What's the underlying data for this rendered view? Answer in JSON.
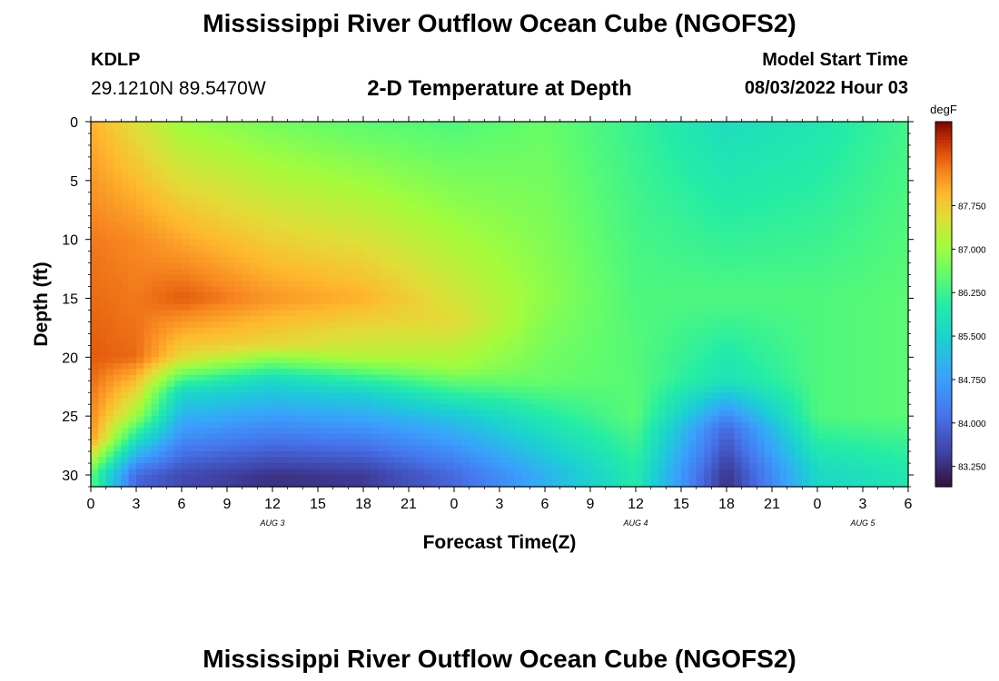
{
  "header": {
    "title": "Mississippi River Outflow Ocean Cube (NGOFS2)",
    "station_id": "KDLP",
    "station_coords": "29.1210N  89.5470W",
    "product_title": "2-D Temperature at Depth",
    "run_label": "Model Start Time",
    "run_value": "08/03/2022 Hour 03"
  },
  "footer": {
    "title": "Mississippi River Outflow Ocean Cube (NGOFS2)"
  },
  "chart_data": {
    "type": "heatmap",
    "title": "2-D Temperature at Depth",
    "xlabel": "Forecast Time(Z)",
    "ylabel": "Depth (ft)",
    "x_ticks": [
      "0",
      "3",
      "6",
      "9",
      "12",
      "15",
      "18",
      "21",
      "0",
      "3",
      "6",
      "9",
      "12",
      "15",
      "18",
      "21",
      "0",
      "3",
      "6"
    ],
    "x_range_hours": [
      0,
      54
    ],
    "date_labels": [
      {
        "label": "AUG 3",
        "hour": 12
      },
      {
        "label": "AUG 4",
        "hour": 36
      },
      {
        "label": "AUG 5",
        "hour": 51
      }
    ],
    "y_ticks": [
      "0",
      "5",
      "10",
      "15",
      "20",
      "25",
      "30"
    ],
    "y_range_ft": [
      0,
      31
    ],
    "y_inverted": true,
    "colorbar": {
      "unit": "degF",
      "min": 82.9,
      "max": 89.2,
      "tick_values": [
        83.25,
        84.0,
        84.75,
        85.5,
        86.25,
        87.0,
        87.75
      ],
      "tick_labels": [
        "83.250",
        "84.000",
        "84.750",
        "85.500",
        "86.250",
        "87.000",
        "87.750"
      ]
    },
    "field_description": "Temperature field by forecast hour (x) and depth (y)",
    "temperature_samples": [
      {
        "hour": 0,
        "profile": [
          {
            "depth": 0,
            "temp": 88.0
          },
          {
            "depth": 10,
            "temp": 88.4
          },
          {
            "depth": 20,
            "temp": 88.6
          },
          {
            "depth": 27,
            "temp": 88.2
          },
          {
            "depth": 30,
            "temp": 86.5
          }
        ]
      },
      {
        "hour": 3,
        "profile": [
          {
            "depth": 0,
            "temp": 87.5
          },
          {
            "depth": 10,
            "temp": 88.3
          },
          {
            "depth": 20,
            "temp": 88.5
          },
          {
            "depth": 25,
            "temp": 87.0
          },
          {
            "depth": 30,
            "temp": 84.0
          }
        ]
      },
      {
        "hour": 6,
        "profile": [
          {
            "depth": 0,
            "temp": 87.0
          },
          {
            "depth": 15,
            "temp": 88.6
          },
          {
            "depth": 20,
            "temp": 87.6
          },
          {
            "depth": 23,
            "temp": 85.6
          },
          {
            "depth": 30,
            "temp": 83.6
          }
        ]
      },
      {
        "hour": 12,
        "profile": [
          {
            "depth": 0,
            "temp": 86.7
          },
          {
            "depth": 15,
            "temp": 88.2
          },
          {
            "depth": 19,
            "temp": 87.6
          },
          {
            "depth": 22,
            "temp": 85.6
          },
          {
            "depth": 30,
            "temp": 83.3
          }
        ]
      },
      {
        "hour": 18,
        "profile": [
          {
            "depth": 0,
            "temp": 86.5
          },
          {
            "depth": 15,
            "temp": 88.0
          },
          {
            "depth": 20,
            "temp": 87.2
          },
          {
            "depth": 23,
            "temp": 85.5
          },
          {
            "depth": 30,
            "temp": 83.4
          }
        ]
      },
      {
        "hour": 24,
        "profile": [
          {
            "depth": 0,
            "temp": 86.4
          },
          {
            "depth": 17,
            "temp": 87.6
          },
          {
            "depth": 21,
            "temp": 87.0
          },
          {
            "depth": 25,
            "temp": 85.3
          },
          {
            "depth": 30,
            "temp": 84.0
          }
        ]
      },
      {
        "hour": 30,
        "profile": [
          {
            "depth": 0,
            "temp": 86.6
          },
          {
            "depth": 15,
            "temp": 86.9
          },
          {
            "depth": 22,
            "temp": 86.6
          },
          {
            "depth": 27,
            "temp": 85.6
          },
          {
            "depth": 30,
            "temp": 85.0
          }
        ]
      },
      {
        "hour": 36,
        "profile": [
          {
            "depth": 0,
            "temp": 86.2
          },
          {
            "depth": 15,
            "temp": 86.4
          },
          {
            "depth": 25,
            "temp": 86.5
          },
          {
            "depth": 30,
            "temp": 86.0
          }
        ]
      },
      {
        "hour": 42,
        "profile": [
          {
            "depth": 0,
            "temp": 85.7
          },
          {
            "depth": 15,
            "temp": 86.4
          },
          {
            "depth": 22,
            "temp": 85.8
          },
          {
            "depth": 26,
            "temp": 84.0
          },
          {
            "depth": 30,
            "temp": 83.3
          }
        ]
      },
      {
        "hour": 48,
        "profile": [
          {
            "depth": 0,
            "temp": 85.9
          },
          {
            "depth": 15,
            "temp": 86.4
          },
          {
            "depth": 25,
            "temp": 86.4
          },
          {
            "depth": 30,
            "temp": 85.6
          }
        ]
      },
      {
        "hour": 54,
        "profile": [
          {
            "depth": 0,
            "temp": 86.3
          },
          {
            "depth": 15,
            "temp": 86.5
          },
          {
            "depth": 25,
            "temp": 86.5
          },
          {
            "depth": 30,
            "temp": 85.9
          }
        ]
      }
    ]
  }
}
